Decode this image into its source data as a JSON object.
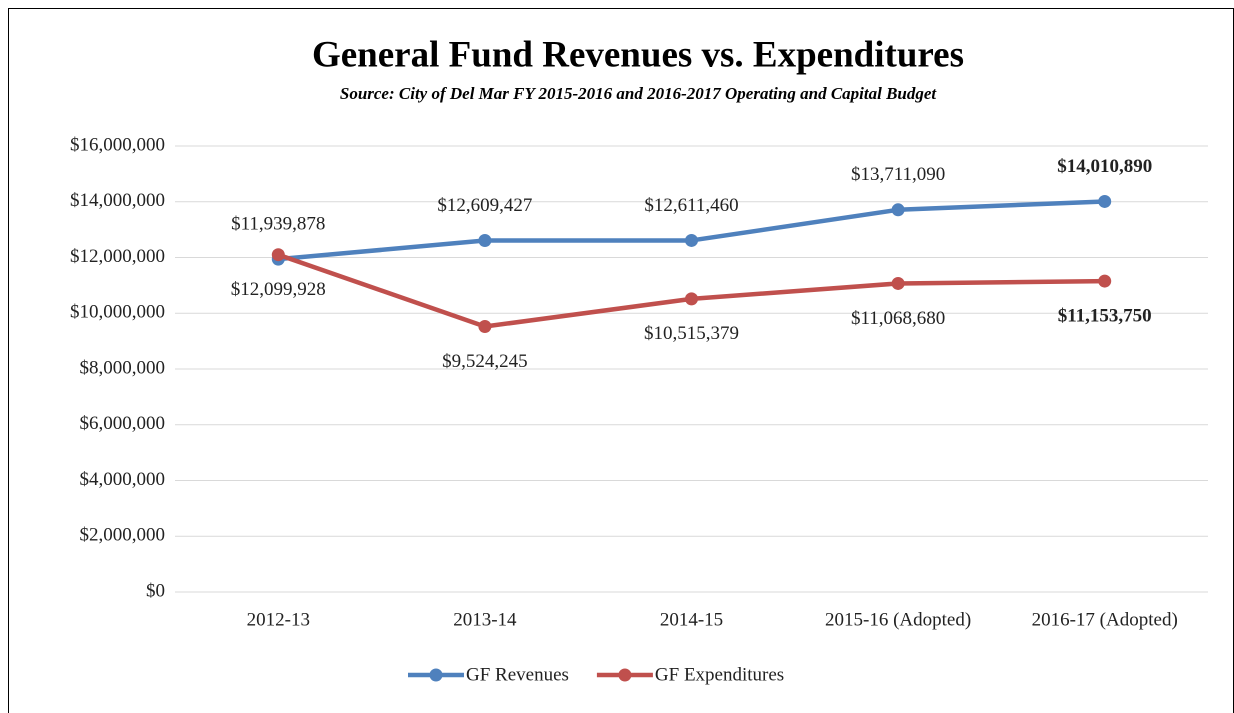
{
  "chart_data": {
    "type": "line",
    "title": "General Fund Revenues vs. Expenditures",
    "subtitle": "Source: City of Del Mar FY 2015-2016 and 2016-2017 Operating and Capital Budget",
    "categories": [
      "2012-13",
      "2013-14",
      "2014-15",
      "2015-16 (Adopted)",
      "2016-17 (Adopted)"
    ],
    "series": [
      {
        "name": "GF Revenues",
        "color": "#4f81bd",
        "values": [
          11939878,
          12609427,
          12611460,
          13711090,
          14010890
        ],
        "value_labels": [
          "$11,939,878",
          "$12,609,427",
          "$12,611,460",
          "$13,711,090",
          "$14,010,890"
        ]
      },
      {
        "name": "GF Expenditures",
        "color": "#c0504d",
        "values": [
          12099928,
          9524245,
          10515379,
          11068680,
          11153750
        ],
        "value_labels": [
          "$12,099,928",
          "$9,524,245",
          "$10,515,379",
          "$11,068,680",
          "$11,153,750"
        ]
      }
    ],
    "ylim": [
      0,
      16000000
    ],
    "yticks": [
      {
        "value": 0,
        "label": "$0"
      },
      {
        "value": 2000000,
        "label": "$2,000,000"
      },
      {
        "value": 4000000,
        "label": "$4,000,000"
      },
      {
        "value": 6000000,
        "label": "$6,000,000"
      },
      {
        "value": 8000000,
        "label": "$8,000,000"
      },
      {
        "value": 10000000,
        "label": "$10,000,000"
      },
      {
        "value": 12000000,
        "label": "$12,000,000"
      },
      {
        "value": 14000000,
        "label": "$14,000,000"
      },
      {
        "value": 16000000,
        "label": "$16,000,000"
      }
    ],
    "grid": true,
    "legend": "bottom"
  }
}
